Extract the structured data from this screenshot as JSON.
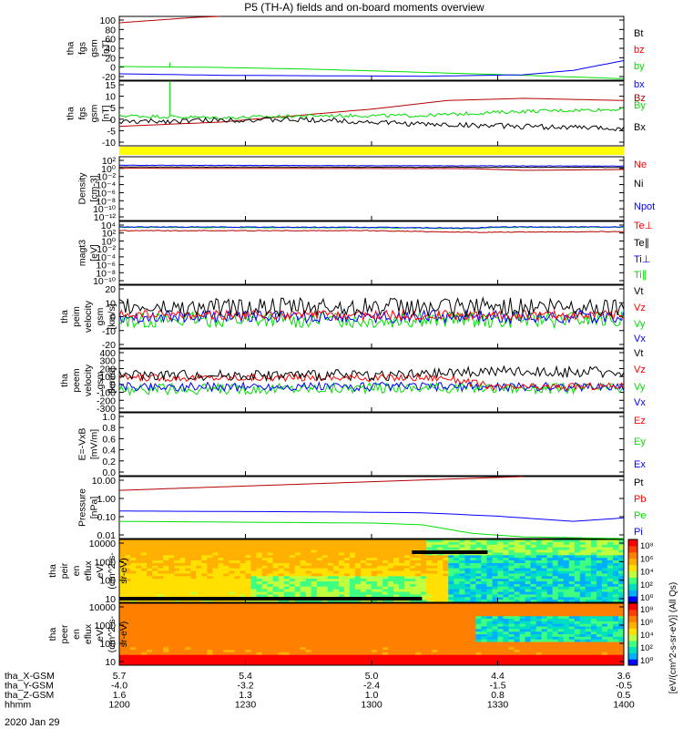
{
  "title": "P5 (TH-A) fields and on-board moments overview",
  "date_label": "2020 Jan 29",
  "colors": {
    "black": "#000000",
    "red": "#ff0000",
    "darkred": "#b40000",
    "green": "#00e000",
    "blue": "#0000ff",
    "yellow": "#ffff00"
  },
  "chart_data": [
    {
      "id": "p1",
      "type": "line",
      "ylabel": [
        "tha",
        "fgs",
        "gsm",
        "[nT]"
      ],
      "ylim": [
        -30,
        100
      ],
      "yticks": [
        "100",
        "80",
        "60",
        "40",
        "20",
        "0",
        "-20"
      ],
      "legend": [
        {
          "label": "Bt",
          "color": "black"
        },
        {
          "label": "bz",
          "color": "red"
        },
        {
          "label": "by",
          "color": "green"
        },
        {
          "label": "bx",
          "color": "blue"
        }
      ],
      "series": [
        {
          "name": "Bt",
          "color": "darkred",
          "x": [
            0,
            0.15,
            0.2
          ],
          "y": [
            87,
            98,
            100
          ]
        },
        {
          "name": "by",
          "color": "green",
          "x": [
            0,
            0.2,
            0.4,
            0.6,
            0.8,
            1
          ],
          "y": [
            -2,
            -4,
            -8,
            -14,
            -20,
            -27
          ]
        },
        {
          "name": "bx",
          "color": "blue",
          "x": [
            0,
            0.2,
            0.4,
            0.6,
            0.8,
            0.9,
            1
          ],
          "y": [
            -17,
            -20,
            -21,
            -22,
            -19,
            -10,
            10
          ]
        }
      ]
    },
    {
      "id": "p2",
      "type": "line",
      "ylabel": [
        "tha",
        "fgs",
        "gsm",
        "[nT]"
      ],
      "ylim": [
        -14,
        16
      ],
      "yticks": [
        "15",
        "10",
        "5",
        "0",
        "-5",
        "-10"
      ],
      "legend": [
        {
          "label": "Bz",
          "color": "darkred"
        },
        {
          "label": "By",
          "color": "green"
        },
        {
          "label": "Bx",
          "color": "black"
        }
      ],
      "series": [
        {
          "name": "Bz",
          "color": "darkred",
          "x": [
            0,
            0.2,
            0.35,
            0.5,
            0.65,
            0.8,
            1
          ],
          "y": [
            -5,
            -3,
            0,
            3,
            7,
            8,
            7
          ]
        },
        {
          "name": "By",
          "color": "green",
          "x": [
            0,
            0.2,
            0.4,
            0.6,
            0.8,
            1
          ],
          "y": [
            0,
            -1,
            0,
            0,
            2,
            3
          ]
        },
        {
          "name": "Bx",
          "color": "black",
          "x": [
            0,
            0.2,
            0.4,
            0.6,
            0.8,
            1
          ],
          "y": [
            -3,
            -2,
            -2,
            -4,
            -5,
            -6
          ]
        }
      ]
    },
    {
      "id": "p3",
      "type": "line",
      "ylabel": [
        "Density",
        "[cm-3]"
      ],
      "ylim": [
        -12,
        3
      ],
      "yscale": "log",
      "yticks": [
        "10²",
        "10⁰",
        "10⁻²",
        "10⁻⁴",
        "10⁻⁶",
        "10⁻⁸",
        "10⁻¹⁰",
        "10⁻¹²"
      ],
      "legend": [
        {
          "label": "Ne",
          "color": "red"
        },
        {
          "label": "Ni",
          "color": "black"
        },
        {
          "label": "Npot",
          "color": "blue"
        }
      ],
      "series": [
        {
          "name": "Ni",
          "color": "black",
          "x": [
            0,
            1
          ],
          "y": [
            0.6,
            0.5
          ]
        },
        {
          "name": "Ne",
          "color": "darkred",
          "x": [
            0,
            0.7,
            0.8,
            1
          ],
          "y": [
            0.3,
            0.2,
            -0.2,
            0
          ]
        },
        {
          "name": "Npot",
          "color": "blue",
          "x": [
            0,
            0.5,
            1
          ],
          "y": [
            1,
            0.9,
            0.8
          ]
        }
      ]
    },
    {
      "id": "p4",
      "type": "line",
      "ylabel": [
        "magt3",
        "[eV]"
      ],
      "ylim": [
        -10,
        5
      ],
      "yscale": "log",
      "yticks": [
        "10⁴",
        "10²",
        "10⁰",
        "10⁻²",
        "10⁻⁴",
        "10⁻⁶",
        "10⁻⁸",
        "10⁻¹⁰"
      ],
      "legend": [
        {
          "label": "Te⊥",
          "color": "red"
        },
        {
          "label": "Te∥",
          "color": "black"
        },
        {
          "label": "Ti⊥",
          "color": "blue"
        },
        {
          "label": "Ti∥",
          "color": "green"
        }
      ],
      "series": [
        {
          "name": "Ti",
          "color": "green",
          "x": [
            0,
            0.5,
            0.7,
            0.75,
            1
          ],
          "y": [
            3.6,
            3.5,
            3.3,
            3.6,
            3.6
          ]
        },
        {
          "name": "Ti⊥",
          "color": "blue",
          "x": [
            0,
            0.5,
            0.7,
            0.75,
            1
          ],
          "y": [
            3.7,
            3.6,
            3.4,
            3.7,
            3.7
          ]
        },
        {
          "name": "Te",
          "color": "darkred",
          "x": [
            0,
            0.5,
            0.7,
            1
          ],
          "y": [
            2.8,
            2.8,
            2.4,
            2.6
          ]
        }
      ]
    },
    {
      "id": "p5",
      "type": "line",
      "ylabel": [
        "tha",
        "peim",
        "velocity",
        "gsm",
        "[km/s]"
      ],
      "ylim": [
        -20,
        20
      ],
      "yticks": [
        "20",
        "10",
        "0",
        "-10",
        "-20"
      ],
      "legend": [
        {
          "label": "Vt",
          "color": "black"
        },
        {
          "label": "Vz",
          "color": "red"
        },
        {
          "label": "Vy",
          "color": "green"
        },
        {
          "label": "Vx",
          "color": "blue"
        }
      ],
      "series": [
        {
          "name": "Vy",
          "color": "green",
          "x": [
            0,
            1
          ],
          "y": [
            -2,
            -2
          ]
        },
        {
          "name": "Vx",
          "color": "blue",
          "x": [
            0,
            1
          ],
          "y": [
            0,
            0
          ]
        },
        {
          "name": "Vz",
          "color": "red",
          "x": [
            0,
            1
          ],
          "y": [
            1,
            1
          ]
        },
        {
          "name": "Vt",
          "color": "black",
          "x": [
            0,
            1
          ],
          "y": [
            6,
            6
          ]
        }
      ]
    },
    {
      "id": "p6",
      "type": "line",
      "ylabel": [
        "tha",
        "peem",
        "velocity",
        "gsm",
        "[km/s]"
      ],
      "ylim": [
        -300,
        400
      ],
      "yticks": [
        "400",
        "300",
        "200",
        "100",
        "0",
        "-100",
        "-200",
        "-300"
      ],
      "legend": [
        {
          "label": "Vt",
          "color": "black"
        },
        {
          "label": "Vz",
          "color": "red"
        },
        {
          "label": "Vy",
          "color": "green"
        },
        {
          "label": "Vx",
          "color": "blue"
        }
      ],
      "series": [
        {
          "name": "Vy",
          "color": "green",
          "x": [
            0,
            0.7,
            1
          ],
          "y": [
            -50,
            -30,
            -40
          ]
        },
        {
          "name": "Vx",
          "color": "blue",
          "x": [
            0,
            1
          ],
          "y": [
            -20,
            -20
          ]
        },
        {
          "name": "Vz",
          "color": "red",
          "x": [
            0,
            0.65,
            0.75,
            1
          ],
          "y": [
            80,
            80,
            -30,
            -10
          ]
        },
        {
          "name": "Vt",
          "color": "black",
          "x": [
            0,
            0.6,
            0.7,
            1
          ],
          "y": [
            110,
            110,
            150,
            140
          ]
        }
      ]
    },
    {
      "id": "p7",
      "type": "line",
      "ylabel": [
        "E=-VxB",
        "[mV/m]"
      ],
      "ylim": [
        0,
        1
      ],
      "yticks": [
        "1.0",
        "0.8",
        "0.6",
        "0.4",
        "0.2",
        "0.0"
      ],
      "legend": [
        {
          "label": "Ez",
          "color": "red"
        },
        {
          "label": "Ey",
          "color": "green"
        },
        {
          "label": "Ex",
          "color": "blue"
        }
      ],
      "series": []
    },
    {
      "id": "p8",
      "type": "line",
      "ylabel": [
        "Pressure",
        "[nPa]"
      ],
      "ylim": [
        -2.3,
        1.3
      ],
      "yscale": "log",
      "yticks": [
        "10.00",
        "1.00",
        "0.10",
        "0.01"
      ],
      "legend": [
        {
          "label": "Pt",
          "color": "black"
        },
        {
          "label": "Pb",
          "color": "red"
        },
        {
          "label": "Pe",
          "color": "green"
        },
        {
          "label": "Pi",
          "color": "blue"
        }
      ],
      "series": [
        {
          "name": "Pt",
          "color": "darkred",
          "x": [
            0,
            0.4,
            0.8
          ],
          "y": [
            0.5,
            0.9,
            1.3
          ]
        },
        {
          "name": "Pi",
          "color": "blue",
          "x": [
            0,
            0.4,
            0.6,
            0.75,
            0.9,
            1
          ],
          "y": [
            -0.7,
            -0.75,
            -0.8,
            -1.0,
            -1.3,
            -1.1
          ]
        },
        {
          "name": "Pe",
          "color": "green",
          "x": [
            0,
            0.5,
            0.6,
            0.7,
            0.8,
            1
          ],
          "y": [
            -1.3,
            -1.4,
            -1.5,
            -2.0,
            -2.2,
            -2.3
          ]
        }
      ]
    },
    {
      "id": "p9",
      "type": "heatmap",
      "ylabel": [
        "tha",
        "peir",
        "en",
        "eflux",
        "eV/",
        "(cm^2-s-",
        "sr-eV)"
      ],
      "ylim": [
        5,
        20000
      ],
      "yscale": "log",
      "yticks": [
        "10000",
        "1000",
        "100",
        "10"
      ]
    },
    {
      "id": "p10",
      "type": "heatmap",
      "ylabel": [
        "tha",
        "peer",
        "en",
        "eflux",
        "eV/",
        "(cm^2-s-",
        "sr-eV)"
      ],
      "ylim": [
        5,
        20000
      ],
      "yscale": "log",
      "yticks": [
        "10000",
        "1000",
        "100",
        "10"
      ]
    }
  ],
  "colorbar": {
    "label": "[eV/(cm^2-s-sr-eV)] (All Qs)",
    "ticks_upper": [
      "10⁸",
      "10⁶",
      "10⁴",
      "10²",
      "10⁰"
    ],
    "ticks_lower": [
      "10⁸",
      "10⁶",
      "10⁴",
      "10²",
      "10⁰"
    ]
  },
  "xaxis": {
    "rows": [
      {
        "label": "tha_X-GSM",
        "values": [
          "5.7",
          "5.4",
          "5.0",
          "4.4",
          "3.6"
        ]
      },
      {
        "label": "tha_Y-GSM",
        "values": [
          "-4.0",
          "-3.2",
          "-2.4",
          "-1.5",
          "-0.5"
        ]
      },
      {
        "label": "tha_Z-GSM",
        "values": [
          "1.6",
          "1.3",
          "1.0",
          "0.8",
          "0.5"
        ]
      },
      {
        "label": "hhmm",
        "values": [
          "1200",
          "1230",
          "1300",
          "1330",
          "1400"
        ]
      }
    ]
  }
}
